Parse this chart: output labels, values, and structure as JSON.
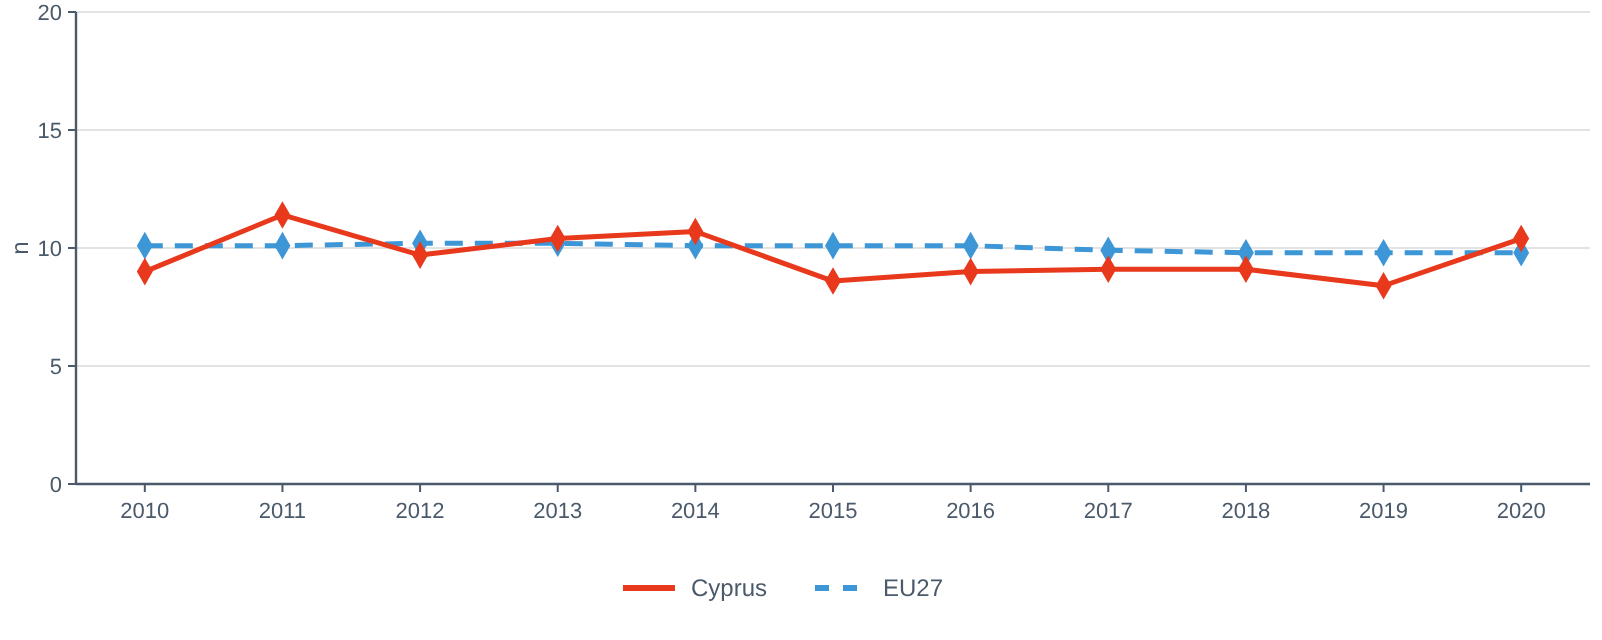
{
  "chart_data": {
    "type": "line",
    "ylabel": "n",
    "categories": [
      "2010",
      "2011",
      "2012",
      "2013",
      "2014",
      "2015",
      "2016",
      "2017",
      "2018",
      "2019",
      "2020"
    ],
    "series": [
      {
        "name": "Cyprus",
        "color": "#e8391d",
        "line_style": "solid",
        "values": [
          9.0,
          11.4,
          9.7,
          10.4,
          10.7,
          8.6,
          9.0,
          9.1,
          9.1,
          8.4,
          10.4
        ]
      },
      {
        "name": "EU27",
        "color": "#3d96d6",
        "line_style": "dashed",
        "values": [
          10.1,
          10.1,
          10.2,
          10.2,
          10.1,
          10.1,
          10.1,
          9.9,
          9.8,
          9.8,
          9.8
        ]
      }
    ],
    "ylim": [
      0,
      20
    ],
    "yticks": [
      0,
      5,
      10,
      15,
      20
    ],
    "grid": "y",
    "legend": "bottom",
    "marker": "diamond"
  }
}
